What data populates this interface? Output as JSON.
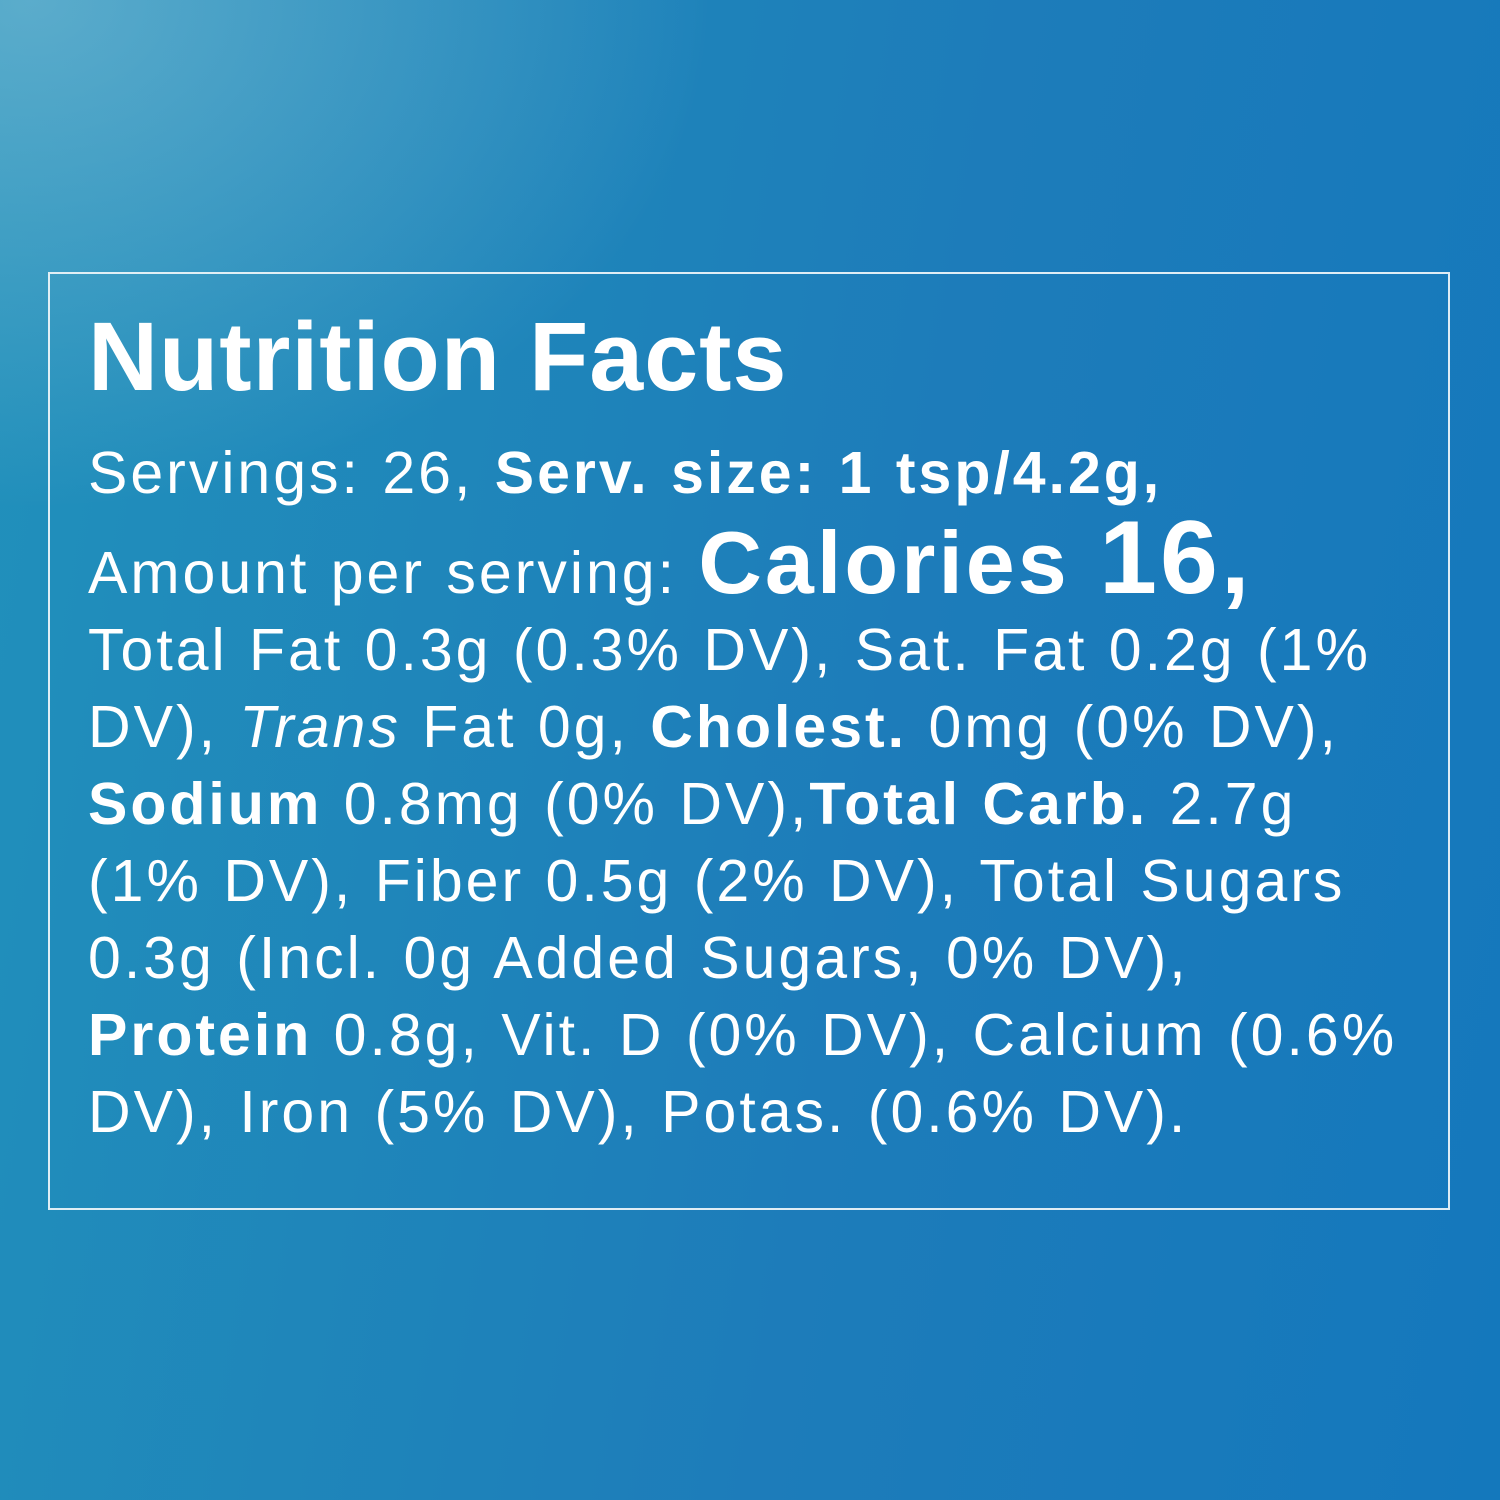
{
  "colors": {
    "background_top_left": "#3e8ab4",
    "background_bottom_left": "#1890b8",
    "background_top_right": "#2472b8",
    "background_bottom_right": "#1478bc",
    "text": "#ffffff",
    "panel_border": "#f0f6fa"
  },
  "panel": {
    "title": "Nutrition Facts",
    "serving_info": {
      "servings_prefix": "Servings: 26, ",
      "serving_size": "Serv. size: 1 tsp/4.2g,"
    },
    "calories": {
      "amount_prefix": "Amount per serving: ",
      "calories_word": "Calories ",
      "calories_value": "16,"
    },
    "nutrients": {
      "fat": "Total Fat 0.3g (0.3% DV), Sat. Fat 0.2g (1% DV), ",
      "trans_word": "Trans",
      "trans_rest": " Fat 0g, ",
      "cholesterol_word": "Cholest.",
      "cholesterol_rest": " 0mg (0% DV), ",
      "sodium_word": "Sodium",
      "sodium_rest": " 0.8mg (0% DV),",
      "carb_word": "Total Carb.",
      "carb_rest": " 2.7g (1% DV), Fiber 0.5g (2% DV), Total Sugars 0.3g (Incl. 0g Added Sugars, 0% DV), ",
      "protein_word": "Protein",
      "protein_rest": " 0.8g, Vit. D (0% DV), Calcium (0.6% DV), Iron (5% DV), Potas. (0.6% DV)."
    }
  }
}
